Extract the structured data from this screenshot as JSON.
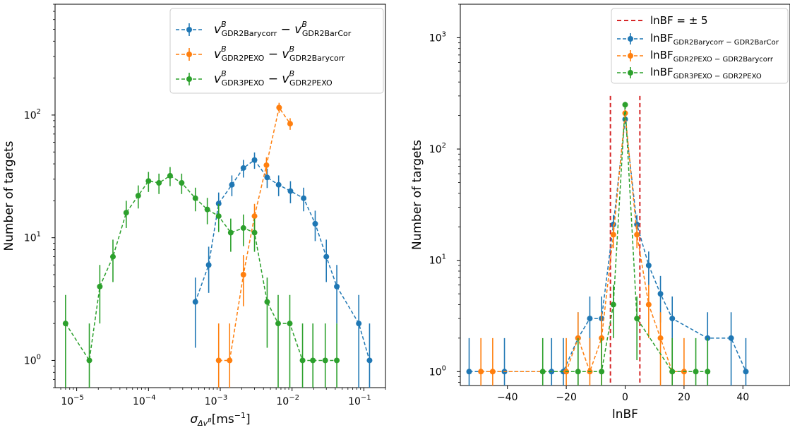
{
  "chart_data": [
    {
      "type": "line",
      "xscale": "log",
      "yscale": "log",
      "xlabel": "σ_Δv^B [ms⁻¹]",
      "ylabel": "Number of targets",
      "xlim": [
        5e-06,
        0.2
      ],
      "ylim": [
        0.6,
        800
      ],
      "xticks": [
        {
          "value": 1e-05,
          "base": "10",
          "exp": "−5"
        },
        {
          "value": 0.0001,
          "base": "10",
          "exp": "−4"
        },
        {
          "value": 0.001,
          "base": "10",
          "exp": "−3"
        },
        {
          "value": 0.01,
          "base": "10",
          "exp": "−2"
        },
        {
          "value": 0.1,
          "base": "10",
          "exp": "−1"
        }
      ],
      "yticks": [
        {
          "value": 1,
          "base": "10",
          "exp": "0"
        },
        {
          "value": 10,
          "base": "10",
          "exp": "1"
        },
        {
          "value": 100,
          "base": "10",
          "exp": "2"
        }
      ],
      "legend_position": "top-right",
      "series": [
        {
          "name": "v^B_GDR2Barycorr − v^B_GDR2BarCor",
          "legend_main": "v",
          "legend_sup": "B",
          "legend_sub1": "GDR2Barycorr",
          "legend_sub2": "GDR2BarCor",
          "color": "#1f77b4",
          "x": [
            0.00045,
            0.00069,
            0.00095,
            0.00145,
            0.0021,
            0.003,
            0.0045,
            0.0065,
            0.0095,
            0.0145,
            0.021,
            0.03,
            0.042,
            0.085,
            0.12
          ],
          "y": [
            3,
            6,
            19,
            27,
            37,
            43,
            31,
            27,
            24,
            21,
            13,
            7,
            4,
            2,
            1
          ]
        },
        {
          "name": "v^B_GDR2PEXO − v^B_GDR2Barycorr",
          "legend_main": "v",
          "legend_sup": "B",
          "legend_sub1": "GDR2PEXO",
          "legend_sub2": "GDR2Barycorr",
          "color": "#ff7f0e",
          "x": [
            0.00095,
            0.00135,
            0.0021,
            0.003,
            0.0044,
            0.0066,
            0.0094
          ],
          "y": [
            1,
            1,
            5,
            15,
            39,
            115,
            85
          ]
        },
        {
          "name": "v^B_GDR3PEXO − v^B_GDR2PEXO",
          "legend_main": "v",
          "legend_sup": "B",
          "legend_sub1": "GDR3PEXO",
          "legend_sub2": "GDR2PEXO",
          "color": "#2ca02c",
          "x": [
            7e-06,
            1.5e-05,
            2.1e-05,
            3.2e-05,
            4.9e-05,
            7.2e-05,
            0.0001,
            0.00014,
            0.0002,
            0.00029,
            0.00045,
            0.00066,
            0.00095,
            0.0014,
            0.0021,
            0.003,
            0.0045,
            0.0064,
            0.0093,
            0.014,
            0.0195,
            0.029,
            0.042
          ],
          "y": [
            2,
            1,
            4,
            7,
            16,
            22,
            29,
            28,
            32,
            28,
            21,
            17,
            15,
            11,
            12,
            11,
            3,
            2,
            2,
            1,
            1,
            1,
            1
          ]
        }
      ]
    },
    {
      "type": "line",
      "xscale": "linear",
      "yscale": "log",
      "xlabel": "lnBF",
      "ylabel": "Number of targets",
      "xlim": [
        -56,
        56
      ],
      "ylim": [
        0.75,
        2000
      ],
      "xticks": [
        {
          "value": -40,
          "label": "−40"
        },
        {
          "value": -20,
          "label": "−20"
        },
        {
          "value": 0,
          "label": "0"
        },
        {
          "value": 20,
          "label": "20"
        },
        {
          "value": 40,
          "label": "40"
        }
      ],
      "yticks": [
        {
          "value": 1,
          "base": "10",
          "exp": "0"
        },
        {
          "value": 10,
          "base": "10",
          "exp": "1"
        },
        {
          "value": 100,
          "base": "10",
          "exp": "2"
        },
        {
          "value": 1000,
          "base": "10",
          "exp": "3"
        }
      ],
      "legend_position": "top-right",
      "vlines": {
        "name": "lnBF = ± 5",
        "x": [
          -5,
          5
        ],
        "color": "#d62728"
      },
      "series": [
        {
          "name": "lnBF_GDR2Barycorr − GDR2BarCor",
          "legend_main": "lnBF",
          "legend_sub": "GDR2Barycorr − GDR2BarCor",
          "color": "#1f77b4",
          "x": [
            -53,
            -41,
            -25,
            -21,
            -16,
            -12,
            -8,
            -4,
            0,
            4,
            8,
            12,
            16,
            28,
            36,
            41
          ],
          "y": [
            1,
            1,
            1,
            1,
            2,
            3,
            3,
            21,
            185,
            21,
            9,
            5,
            3,
            2,
            2,
            1
          ]
        },
        {
          "name": "lnBF_GDR2PEXO − GDR2Barycorr",
          "legend_main": "lnBF",
          "legend_sub": "GDR2PEXO − GDR2Barycorr",
          "color": "#ff7f0e",
          "x": [
            -49,
            -45,
            -20,
            -16,
            -12,
            -8,
            -4,
            0,
            4,
            8,
            12,
            16,
            20
          ],
          "y": [
            1,
            1,
            1,
            2,
            1,
            2,
            17,
            210,
            17,
            4,
            2,
            1,
            1
          ]
        },
        {
          "name": "lnBF_GDR3PEXO − GDR2PEXO",
          "legend_main": "lnBF",
          "legend_sub": "GDR3PEXO − GDR2PEXO",
          "color": "#2ca02c",
          "x": [
            -28,
            -16,
            -8,
            -4,
            0,
            4,
            16,
            24,
            28
          ],
          "y": [
            1,
            1,
            1,
            4,
            250,
            3,
            1,
            1,
            1
          ]
        }
      ]
    }
  ]
}
